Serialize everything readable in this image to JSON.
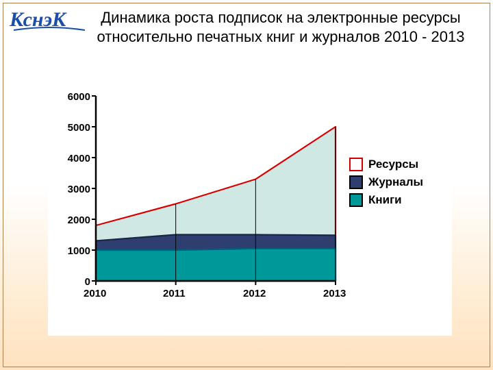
{
  "title": "Динамика роста подписок на электронные ресурсы относительно печатных книг и журналов 2010 - 2013",
  "logo_text": "КснэК",
  "logo_color": "#1a4ea8",
  "chart": {
    "type": "area",
    "background_color": "#ffffff",
    "categories": [
      "2010",
      "2011",
      "2012",
      "2013"
    ],
    "ylim": [
      0,
      6000
    ],
    "ytick_step": 1000,
    "yticks": [
      "0",
      "1000",
      "2000",
      "3000",
      "4000",
      "5000",
      "6000"
    ],
    "tick_fontsize": 15,
    "tick_fontweight": "bold",
    "axis_color": "#000000",
    "series": [
      {
        "name": "Книги",
        "fill": "#009999",
        "stroke": "#006080",
        "type": "area",
        "values": [
          1000,
          1000,
          1050,
          1050
        ]
      },
      {
        "name": "Журналы",
        "fill": "#2d3e6f",
        "stroke": "#1a2645",
        "type": "area",
        "values": [
          1300,
          1500,
          1500,
          1480
        ]
      },
      {
        "name": "Ресурсы",
        "fill": "#cfe8e3",
        "stroke": "#d60000",
        "type": "area",
        "values": [
          1800,
          2500,
          3300,
          5000
        ]
      }
    ],
    "legend": {
      "items": [
        {
          "label": "Ресурсы",
          "fill": "#ffffff",
          "border": "#d60000"
        },
        {
          "label": "Журналы",
          "fill": "#2d3e6f",
          "border": "#000000"
        },
        {
          "label": "Книги",
          "fill": "#009999",
          "border": "#000000"
        }
      ],
      "fontsize": 17,
      "fontweight": "bold"
    }
  }
}
